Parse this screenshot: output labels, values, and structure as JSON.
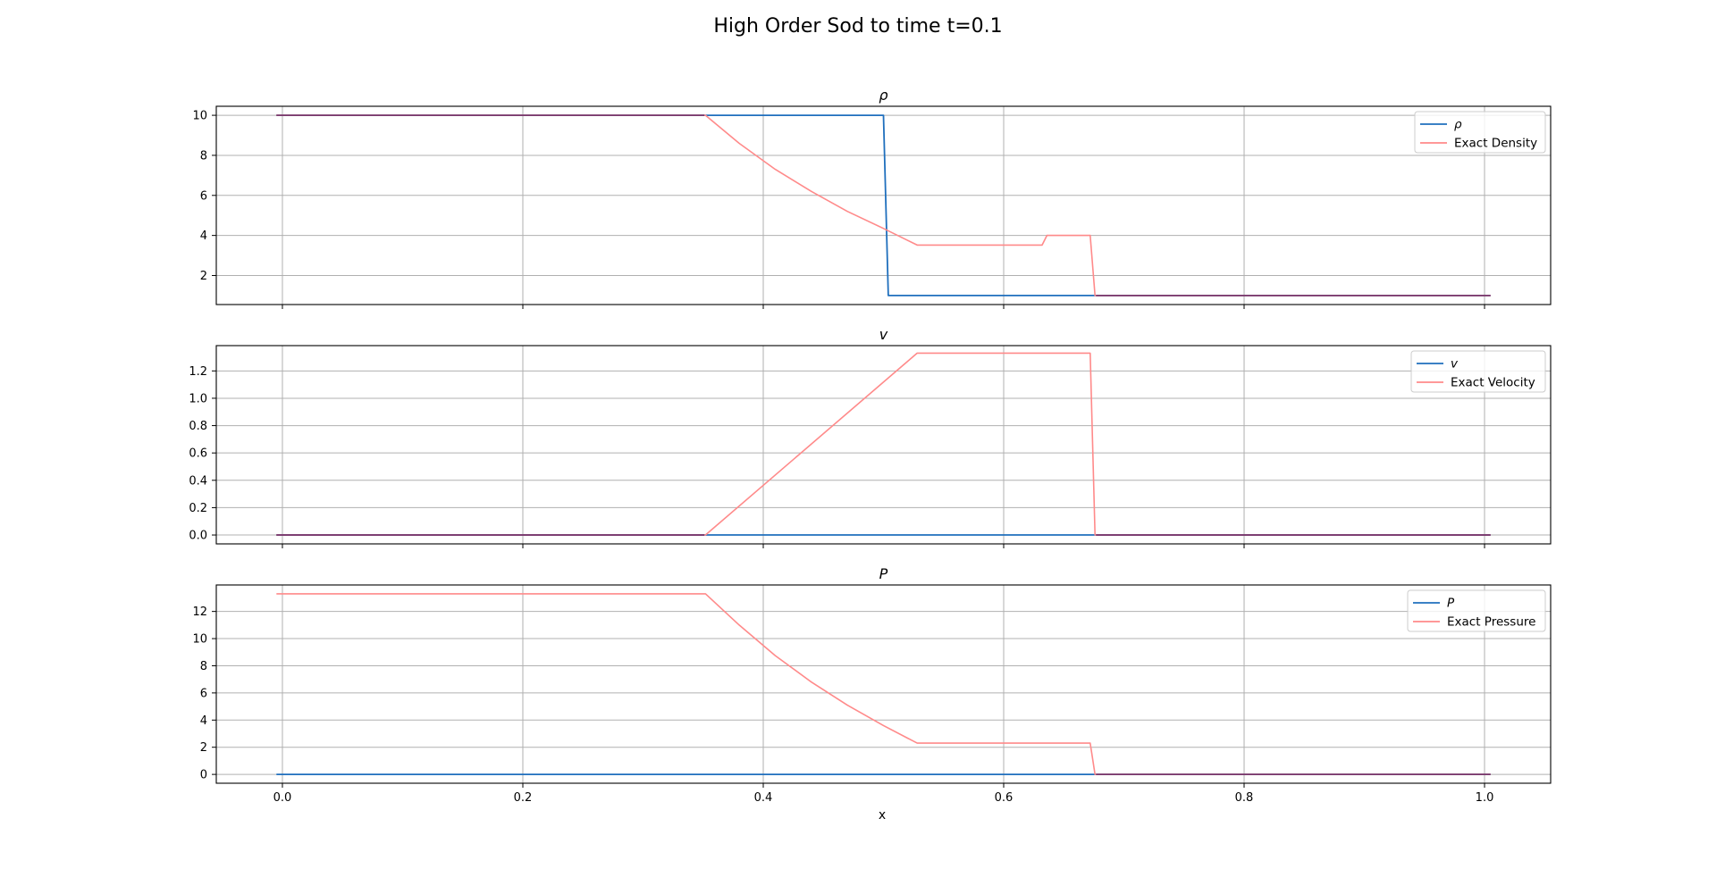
{
  "figure": {
    "title": "High Order Sod to time t=0.1",
    "xlabel": "x"
  },
  "colors": {
    "numerical": "#1f6fbd",
    "exact": "#ff8a8a",
    "overlap": "#7a3a6e"
  },
  "chart_data": [
    {
      "type": "line",
      "title": "ρ",
      "xlim": [
        -0.055,
        1.055
      ],
      "ylim": [
        0.55,
        10.45
      ],
      "xticks": [
        0.0,
        0.2,
        0.4,
        0.6,
        0.8,
        1.0
      ],
      "yticks": [
        2,
        4,
        6,
        8,
        10
      ],
      "grid": true,
      "legend_position": "top-right",
      "series": [
        {
          "name": "ρ",
          "role": "numerical",
          "x": [
            -0.005,
            0.5,
            0.504,
            1.005
          ],
          "y": [
            10,
            10,
            1,
            1
          ]
        },
        {
          "name": "Exact Density",
          "role": "exact",
          "x": [
            -0.005,
            0.352,
            0.38,
            0.41,
            0.44,
            0.47,
            0.5,
            0.528,
            0.632,
            0.636,
            0.672,
            0.676,
            1.005
          ],
          "y": [
            10,
            10,
            8.6,
            7.3,
            6.2,
            5.2,
            4.35,
            3.52,
            3.52,
            4.0,
            4.0,
            1.0,
            1.0
          ]
        }
      ]
    },
    {
      "type": "line",
      "title": "v",
      "xlim": [
        -0.055,
        1.055
      ],
      "ylim": [
        -0.065,
        1.385
      ],
      "xticks": [
        0.0,
        0.2,
        0.4,
        0.6,
        0.8,
        1.0
      ],
      "yticks": [
        0.0,
        0.2,
        0.4,
        0.6,
        0.8,
        1.0,
        1.2
      ],
      "grid": true,
      "legend_position": "top-right",
      "series": [
        {
          "name": "v",
          "role": "numerical",
          "x": [
            -0.005,
            1.005
          ],
          "y": [
            0,
            0
          ]
        },
        {
          "name": "Exact Velocity",
          "role": "exact",
          "x": [
            -0.005,
            0.352,
            0.528,
            0.672,
            0.676,
            1.005
          ],
          "y": [
            0,
            0,
            1.33,
            1.33,
            0,
            0
          ]
        }
      ]
    },
    {
      "type": "line",
      "title": "P",
      "xlim": [
        -0.055,
        1.055
      ],
      "ylim": [
        -0.65,
        13.95
      ],
      "xticks": [
        0.0,
        0.2,
        0.4,
        0.6,
        0.8,
        1.0
      ],
      "yticks": [
        0,
        2,
        4,
        6,
        8,
        10,
        12
      ],
      "grid": true,
      "legend_position": "top-right",
      "series": [
        {
          "name": "P",
          "role": "numerical",
          "x": [
            -0.005,
            1.005
          ],
          "y": [
            0,
            0
          ]
        },
        {
          "name": "Exact Pressure",
          "role": "exact",
          "x": [
            -0.005,
            0.352,
            0.38,
            0.41,
            0.44,
            0.47,
            0.5,
            0.528,
            0.672,
            0.676,
            1.005
          ],
          "y": [
            13.3,
            13.3,
            11.0,
            8.75,
            6.8,
            5.1,
            3.6,
            2.3,
            2.3,
            0,
            0
          ]
        }
      ]
    }
  ]
}
